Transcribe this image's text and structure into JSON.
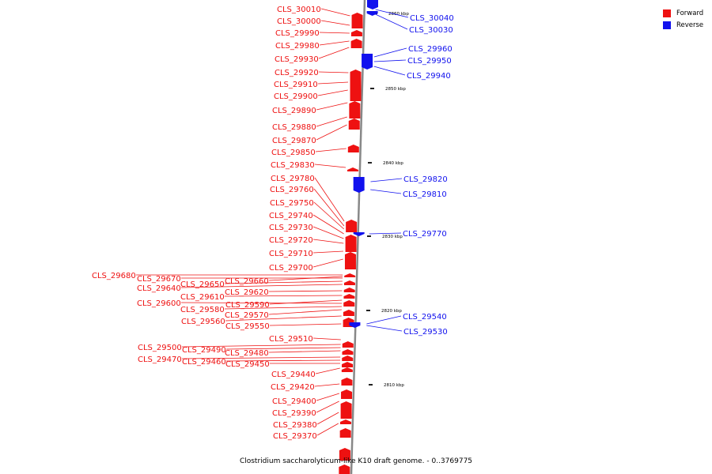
{
  "caption": "Clostridium saccharolyticum-like K10 draft genome. - 0..3769775",
  "legend": [
    {
      "label": "Forward",
      "color": "#ee1111"
    },
    {
      "label": "Reverse",
      "color": "#1111ee"
    }
  ],
  "colors": {
    "forward": "#ee1111",
    "reverse": "#1111ee",
    "axis": "#888888"
  },
  "ticks": [
    "2860 kbp",
    "2850 kbp",
    "2840 kbp",
    "2830 kbp",
    "2820 kbp",
    "2810 kbp"
  ],
  "forward_genes": [
    "CLS_30010",
    "CLS_30000",
    "CLS_29990",
    "CLS_29980",
    "CLS_29930",
    "CLS_29920",
    "CLS_29910",
    "CLS_29900",
    "CLS_29890",
    "CLS_29880",
    "CLS_29870",
    "CLS_29850",
    "CLS_29830",
    "CLS_29780",
    "CLS_29760",
    "CLS_29750",
    "CLS_29740",
    "CLS_29730",
    "CLS_29720",
    "CLS_29710",
    "CLS_29700",
    "CLS_29680",
    "CLS_29670",
    "CLS_29660",
    "CLS_29650",
    "CLS_29640",
    "CLS_29620",
    "CLS_29610",
    "CLS_29600",
    "CLS_29590",
    "CLS_29580",
    "CLS_29570",
    "CLS_29560",
    "CLS_29550",
    "CLS_29510",
    "CLS_29500",
    "CLS_29490",
    "CLS_29480",
    "CLS_29470",
    "CLS_29460",
    "CLS_29450",
    "CLS_29440",
    "CLS_29420",
    "CLS_29400",
    "CLS_29390",
    "CLS_29380",
    "CLS_29370"
  ],
  "reverse_genes": [
    "CLS_30040",
    "CLS_30030",
    "CLS_29960",
    "CLS_29950",
    "CLS_29940",
    "CLS_29820",
    "CLS_29810",
    "CLS_29770",
    "CLS_29540",
    "CLS_29530"
  ]
}
